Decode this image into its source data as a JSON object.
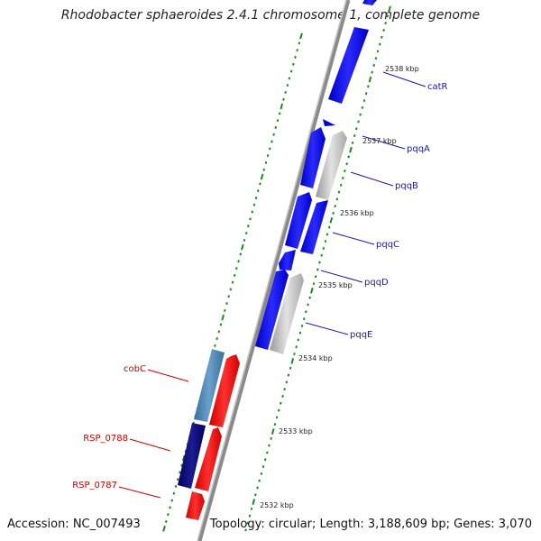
{
  "title": "Rhodobacter sphaeroides 2.4.1 chromosome 1, complete genome",
  "footer": {
    "accession": "Accession: NC_007493",
    "meta": "Topology: circular; Length: 3,188,609 bp; Genes: 3,070"
  },
  "colors": {
    "forward_label": "#1a1aa6",
    "reverse_label": "#cc0000",
    "tick": "#1e8a1e",
    "backbone": "#8a8a8a"
  },
  "kbp_labels": [
    "2538 kbp",
    "2537 kbp",
    "2536 kbp",
    "2535 kbp",
    "2534 kbp",
    "2533 kbp",
    "2532 kbp"
  ],
  "genes_forward": [
    {
      "name": "catR"
    },
    {
      "name": "pqqA"
    },
    {
      "name": "pqqB"
    },
    {
      "name": "pqqC"
    },
    {
      "name": "pqqD"
    },
    {
      "name": "pqqE"
    }
  ],
  "genes_reverse": [
    {
      "name": "cobC"
    },
    {
      "name": "RSP_0788"
    },
    {
      "name": "RSP_0787"
    }
  ]
}
